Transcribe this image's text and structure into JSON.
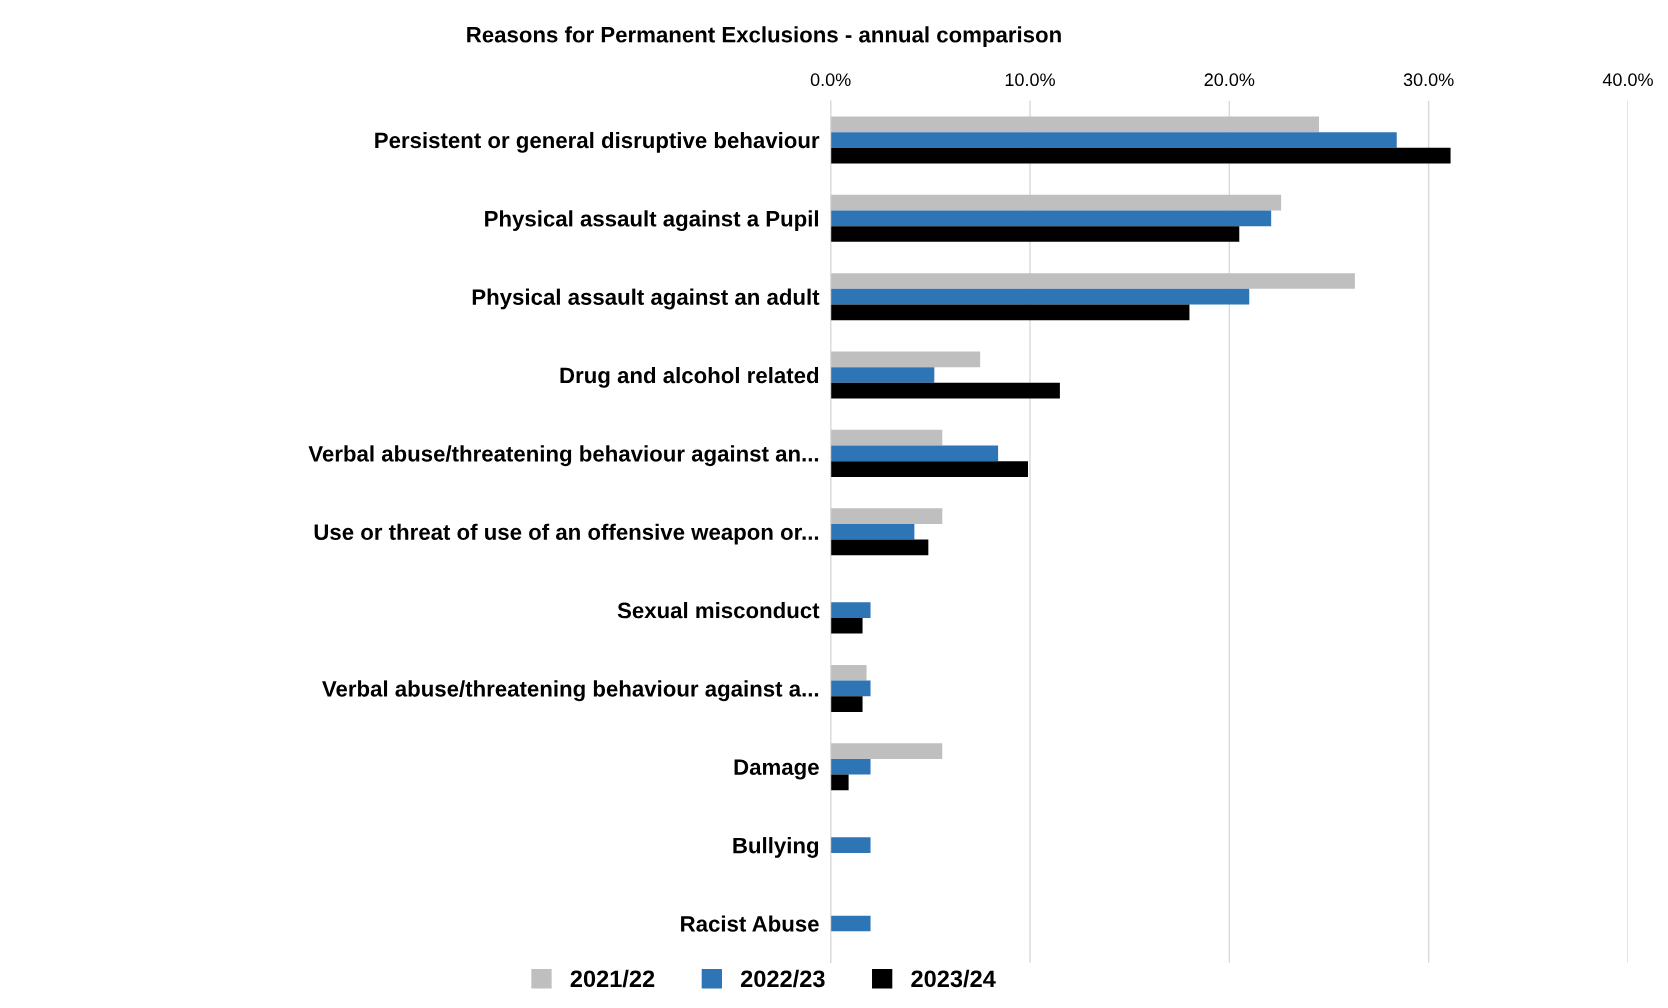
{
  "chart_data": {
    "type": "bar",
    "orientation": "horizontal",
    "title": "Reasons for Permanent Exclusions - annual comparison",
    "categories": [
      "Persistent or general disruptive behaviour",
      "Physical assault against a Pupil",
      "Physical assault against an adult",
      "Drug and alcohol related",
      "Verbal abuse/threatening behaviour against an...",
      "Use or threat of use of an offensive weapon or...",
      "Sexual misconduct",
      "Verbal abuse/threatening behaviour against a...",
      "Damage",
      "Bullying",
      "Racist Abuse"
    ],
    "series": [
      {
        "name": "2021/22",
        "color": "#bfbfbf",
        "values": [
          24.5,
          22.6,
          26.3,
          7.5,
          5.6,
          5.6,
          null,
          1.8,
          5.6,
          null,
          null
        ]
      },
      {
        "name": "2022/23",
        "color": "#2e75b6",
        "values": [
          28.4,
          22.1,
          21.0,
          5.2,
          8.4,
          4.2,
          2.0,
          2.0,
          2.0,
          2.0,
          2.0
        ]
      },
      {
        "name": "2023/24",
        "color": "#000000",
        "values": [
          31.1,
          20.5,
          18.0,
          11.5,
          9.9,
          4.9,
          1.6,
          1.6,
          0.9,
          null,
          null
        ]
      }
    ],
    "xlim": [
      0,
      40
    ],
    "xticks": [
      {
        "value": 0,
        "label": "0.0%"
      },
      {
        "value": 10,
        "label": "10.0%"
      },
      {
        "value": 20,
        "label": "20.0%"
      },
      {
        "value": 30,
        "label": "30.0%"
      },
      {
        "value": 40,
        "label": "40.0%"
      }
    ],
    "grid": "x",
    "legend": "bottom"
  }
}
